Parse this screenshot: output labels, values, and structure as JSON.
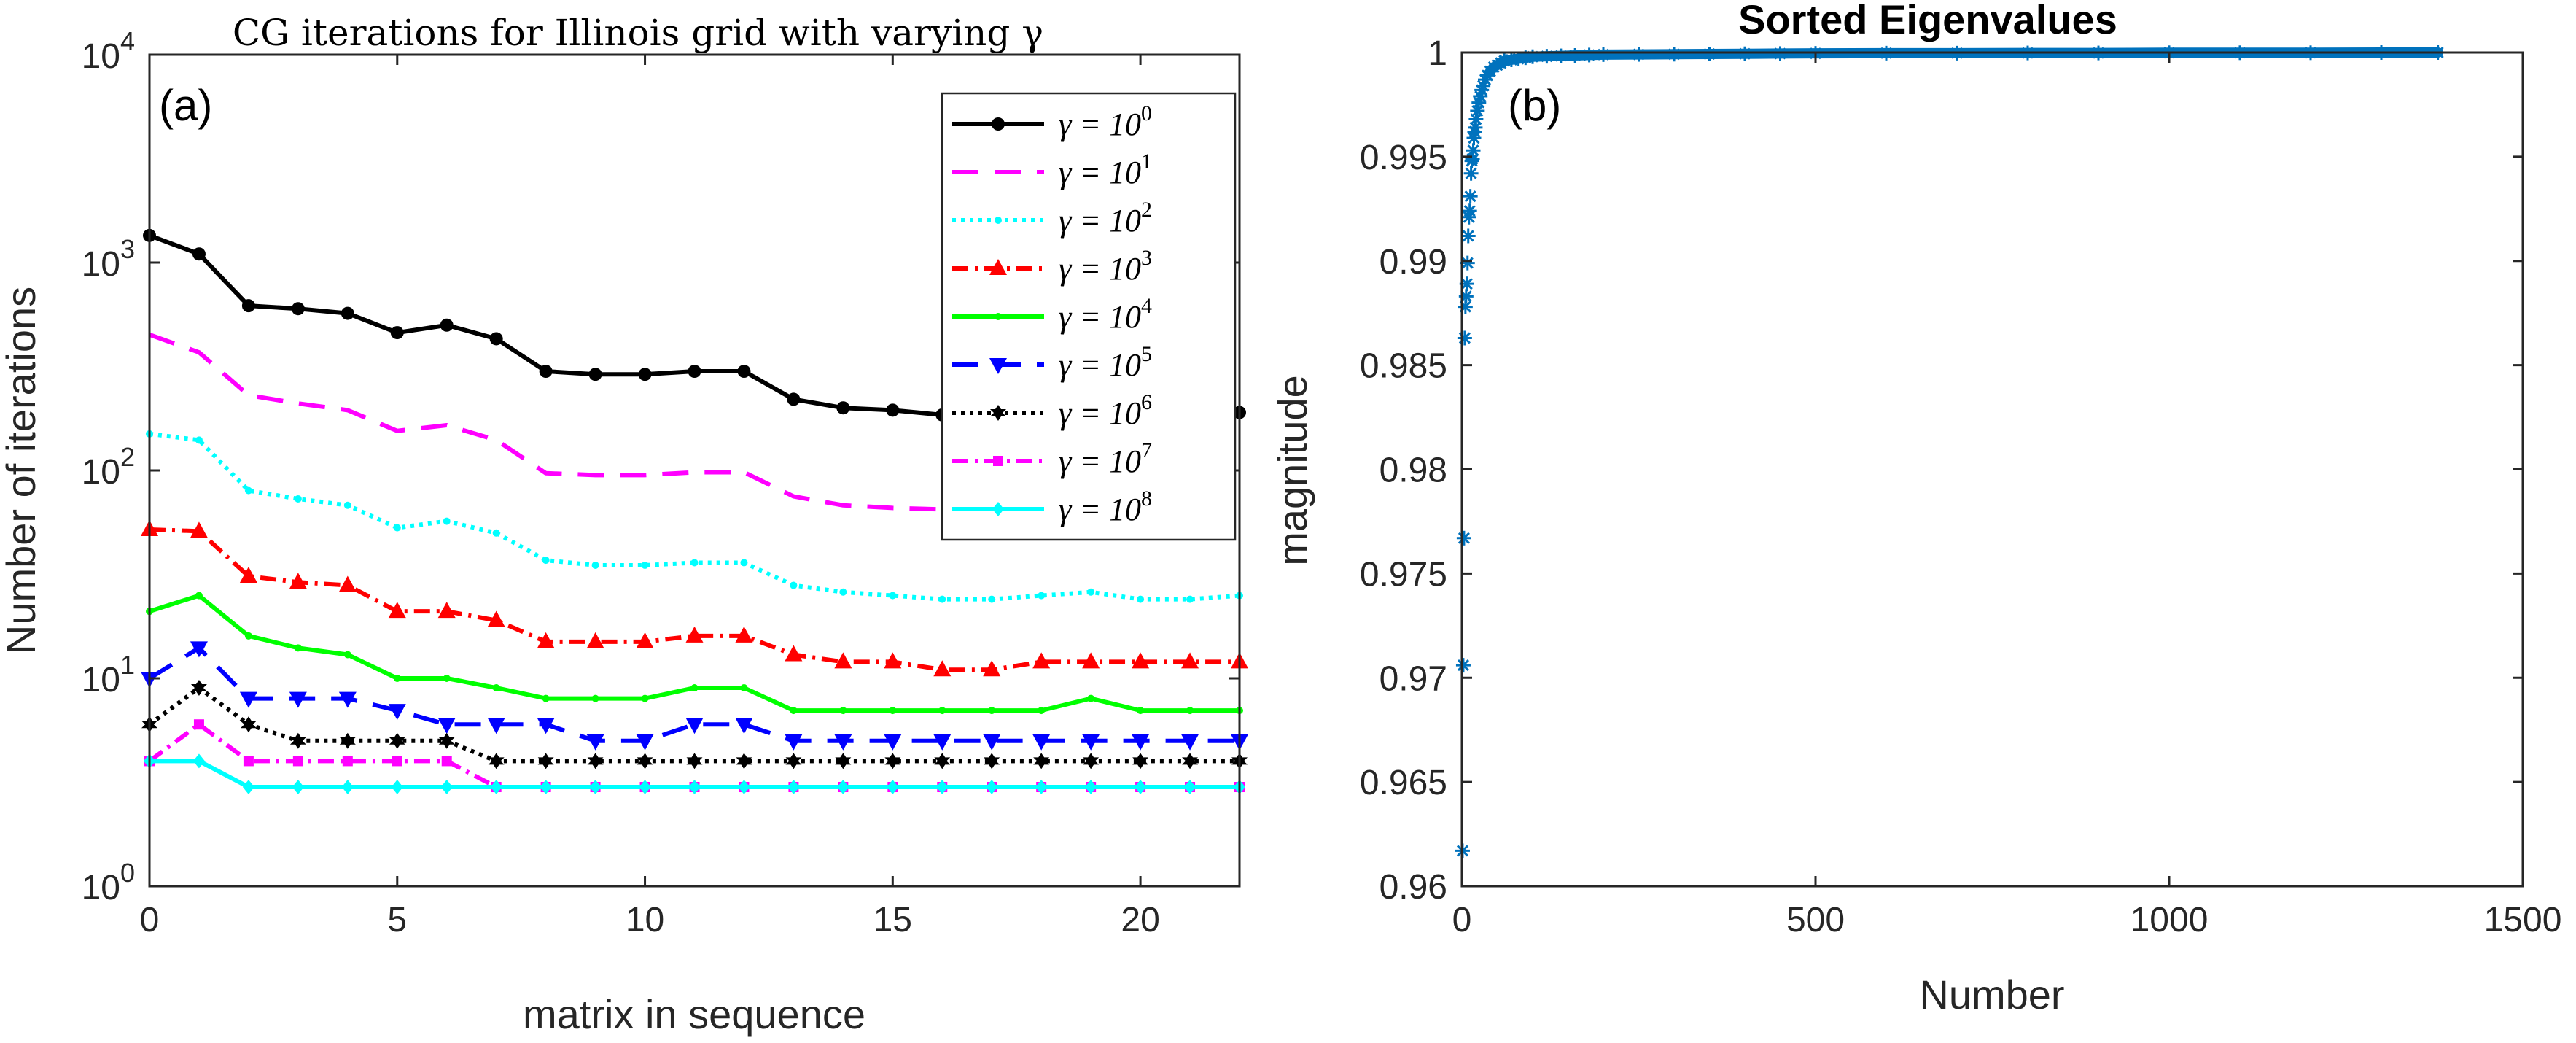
{
  "chart_data": [
    {
      "type": "line",
      "panel_label": "(a)",
      "title": "CG iterations for Illinois grid with varying γ",
      "xlabel": "matrix in sequence",
      "ylabel": "Number of iterations",
      "xlim": [
        0,
        22
      ],
      "ylim": [
        1,
        10000
      ],
      "yscale": "log",
      "xticks": [
        "0",
        "5",
        "10",
        "15",
        "20"
      ],
      "yticks": [
        {
          "base": "10",
          "exp": "0"
        },
        {
          "base": "10",
          "exp": "1"
        },
        {
          "base": "10",
          "exp": "2"
        },
        {
          "base": "10",
          "exp": "3"
        },
        {
          "base": "10",
          "exp": "4"
        }
      ],
      "grid": false,
      "legend_position": "top-right",
      "x": [
        0,
        1,
        2,
        3,
        4,
        5,
        6,
        7,
        8,
        9,
        10,
        11,
        12,
        13,
        14,
        15,
        16,
        17,
        18,
        19,
        20,
        21,
        22
      ],
      "series": [
        {
          "name": "γ = 10^0",
          "label_main": "γ = 10",
          "label_exp": "0",
          "color": "#000000",
          "dash": "",
          "marker": "circle",
          "values": [
            1350,
            1100,
            620,
            600,
            570,
            460,
            500,
            430,
            300,
            290,
            290,
            300,
            300,
            220,
            200,
            195,
            185,
            185,
            185,
            185,
            185,
            185,
            190
          ]
        },
        {
          "name": "γ = 10^1",
          "label_main": "γ = 10",
          "label_exp": "1",
          "color": "#ff00ff",
          "dash": "36 22",
          "marker": "none",
          "values": [
            450,
            370,
            230,
            210,
            195,
            155,
            165,
            140,
            97,
            95,
            95,
            98,
            98,
            75,
            68,
            66,
            65,
            65,
            65,
            65,
            65,
            65,
            67
          ]
        },
        {
          "name": "γ = 10^2",
          "label_main": "γ = 10",
          "label_exp": "2",
          "color": "#00ffff",
          "dash": "5 7",
          "marker": "dot",
          "values": [
            150,
            140,
            80,
            73,
            68,
            53,
            57,
            50,
            37,
            35,
            35,
            36,
            36,
            28,
            26,
            25,
            24,
            24,
            25,
            26,
            24,
            24,
            25
          ]
        },
        {
          "name": "γ = 10^3",
          "label_main": "γ = 10",
          "label_exp": "3",
          "color": "#ff0000",
          "dash": "22 9 4 9",
          "marker": "triangle-up",
          "values": [
            52,
            51,
            31,
            29,
            28,
            21,
            21,
            19,
            15,
            15,
            15,
            16,
            16,
            13,
            12,
            12,
            11,
            11,
            12,
            12,
            12,
            12,
            12
          ]
        },
        {
          "name": "γ = 10^4",
          "label_main": "γ = 10",
          "label_exp": "4",
          "color": "#00ff00",
          "dash": "",
          "marker": "dot",
          "values": [
            21,
            25,
            16,
            14,
            13,
            10,
            10,
            9,
            8,
            8,
            8,
            9,
            9,
            7,
            7,
            7,
            7,
            7,
            7,
            8,
            7,
            7,
            7
          ]
        },
        {
          "name": "γ = 10^5",
          "label_main": "γ = 10",
          "label_exp": "5",
          "color": "#0000ff",
          "dash": "36 22",
          "marker": "triangle-down",
          "values": [
            10,
            14,
            8,
            8,
            8,
            7,
            6,
            6,
            6,
            5,
            5,
            6,
            6,
            5,
            5,
            5,
            5,
            5,
            5,
            5,
            5,
            5,
            5
          ]
        },
        {
          "name": "γ = 10^6",
          "label_main": "γ = 10",
          "label_exp": "6",
          "color": "#000000",
          "dash": "5 7",
          "marker": "hexagram",
          "values": [
            6,
            9,
            6,
            5,
            5,
            5,
            5,
            4,
            4,
            4,
            4,
            4,
            4,
            4,
            4,
            4,
            4,
            4,
            4,
            4,
            4,
            4,
            4
          ]
        },
        {
          "name": "γ = 10^7",
          "label_main": "γ = 10",
          "label_exp": "7",
          "color": "#ff00ff",
          "dash": "22 9 4 9",
          "marker": "square",
          "values": [
            4,
            6,
            4,
            4,
            4,
            4,
            4,
            3,
            3,
            3,
            3,
            3,
            3,
            3,
            3,
            3,
            3,
            3,
            3,
            3,
            3,
            3,
            3
          ]
        },
        {
          "name": "γ = 10^8",
          "label_main": "γ = 10",
          "label_exp": "8",
          "color": "#00ffff",
          "dash": "",
          "marker": "diamond",
          "values": [
            4,
            4,
            3,
            3,
            3,
            3,
            3,
            3,
            3,
            3,
            3,
            3,
            3,
            3,
            3,
            3,
            3,
            3,
            3,
            3,
            3,
            3,
            3
          ]
        }
      ]
    },
    {
      "type": "scatter",
      "panel_label": "(b)",
      "title": "Sorted Eigenvalues",
      "xlabel": "Number",
      "ylabel": "magnitude",
      "xlim": [
        0,
        1500
      ],
      "ylim": [
        0.96,
        1.0
      ],
      "xticks": [
        "0",
        "500",
        "1000",
        "1500"
      ],
      "yticks": [
        "0.96",
        "0.965",
        "0.97",
        "0.975",
        "0.98",
        "0.985",
        "0.99",
        "0.995",
        "1"
      ],
      "grid": false,
      "marker": "asterisk",
      "color": "#0072bd",
      "x": [
        1,
        2,
        3,
        4,
        5,
        6,
        7,
        8,
        9,
        10,
        11,
        12,
        13,
        14,
        15,
        16,
        17,
        18,
        19,
        20,
        22,
        24,
        26,
        28,
        30,
        33,
        36,
        40,
        45,
        50,
        55,
        60,
        70,
        80,
        90,
        100,
        120,
        140,
        160,
        180,
        200,
        250,
        300,
        350,
        400,
        450,
        500,
        600,
        700,
        800,
        900,
        1000,
        1100,
        1200,
        1300,
        1380
      ],
      "y": [
        0.9617,
        0.9706,
        0.9767,
        0.9863,
        0.9878,
        0.9883,
        0.9889,
        0.9899,
        0.9912,
        0.9921,
        0.9924,
        0.9931,
        0.9942,
        0.9948,
        0.9949,
        0.9953,
        0.9959,
        0.9962,
        0.9964,
        0.9968,
        0.9972,
        0.9976,
        0.9979,
        0.9982,
        0.9984,
        0.9987,
        0.9989,
        0.9991,
        0.9993,
        0.9994,
        0.9995,
        0.9996,
        0.99965,
        0.9997,
        0.99975,
        0.9998,
        0.99982,
        0.99984,
        0.99986,
        0.99988,
        0.9999,
        0.99991,
        0.99992,
        0.99993,
        0.99994,
        0.99995,
        0.99996,
        0.99997,
        0.99997,
        0.99998,
        0.99998,
        0.99999,
        0.99999,
        0.99999,
        1.0,
        1.0
      ]
    }
  ]
}
